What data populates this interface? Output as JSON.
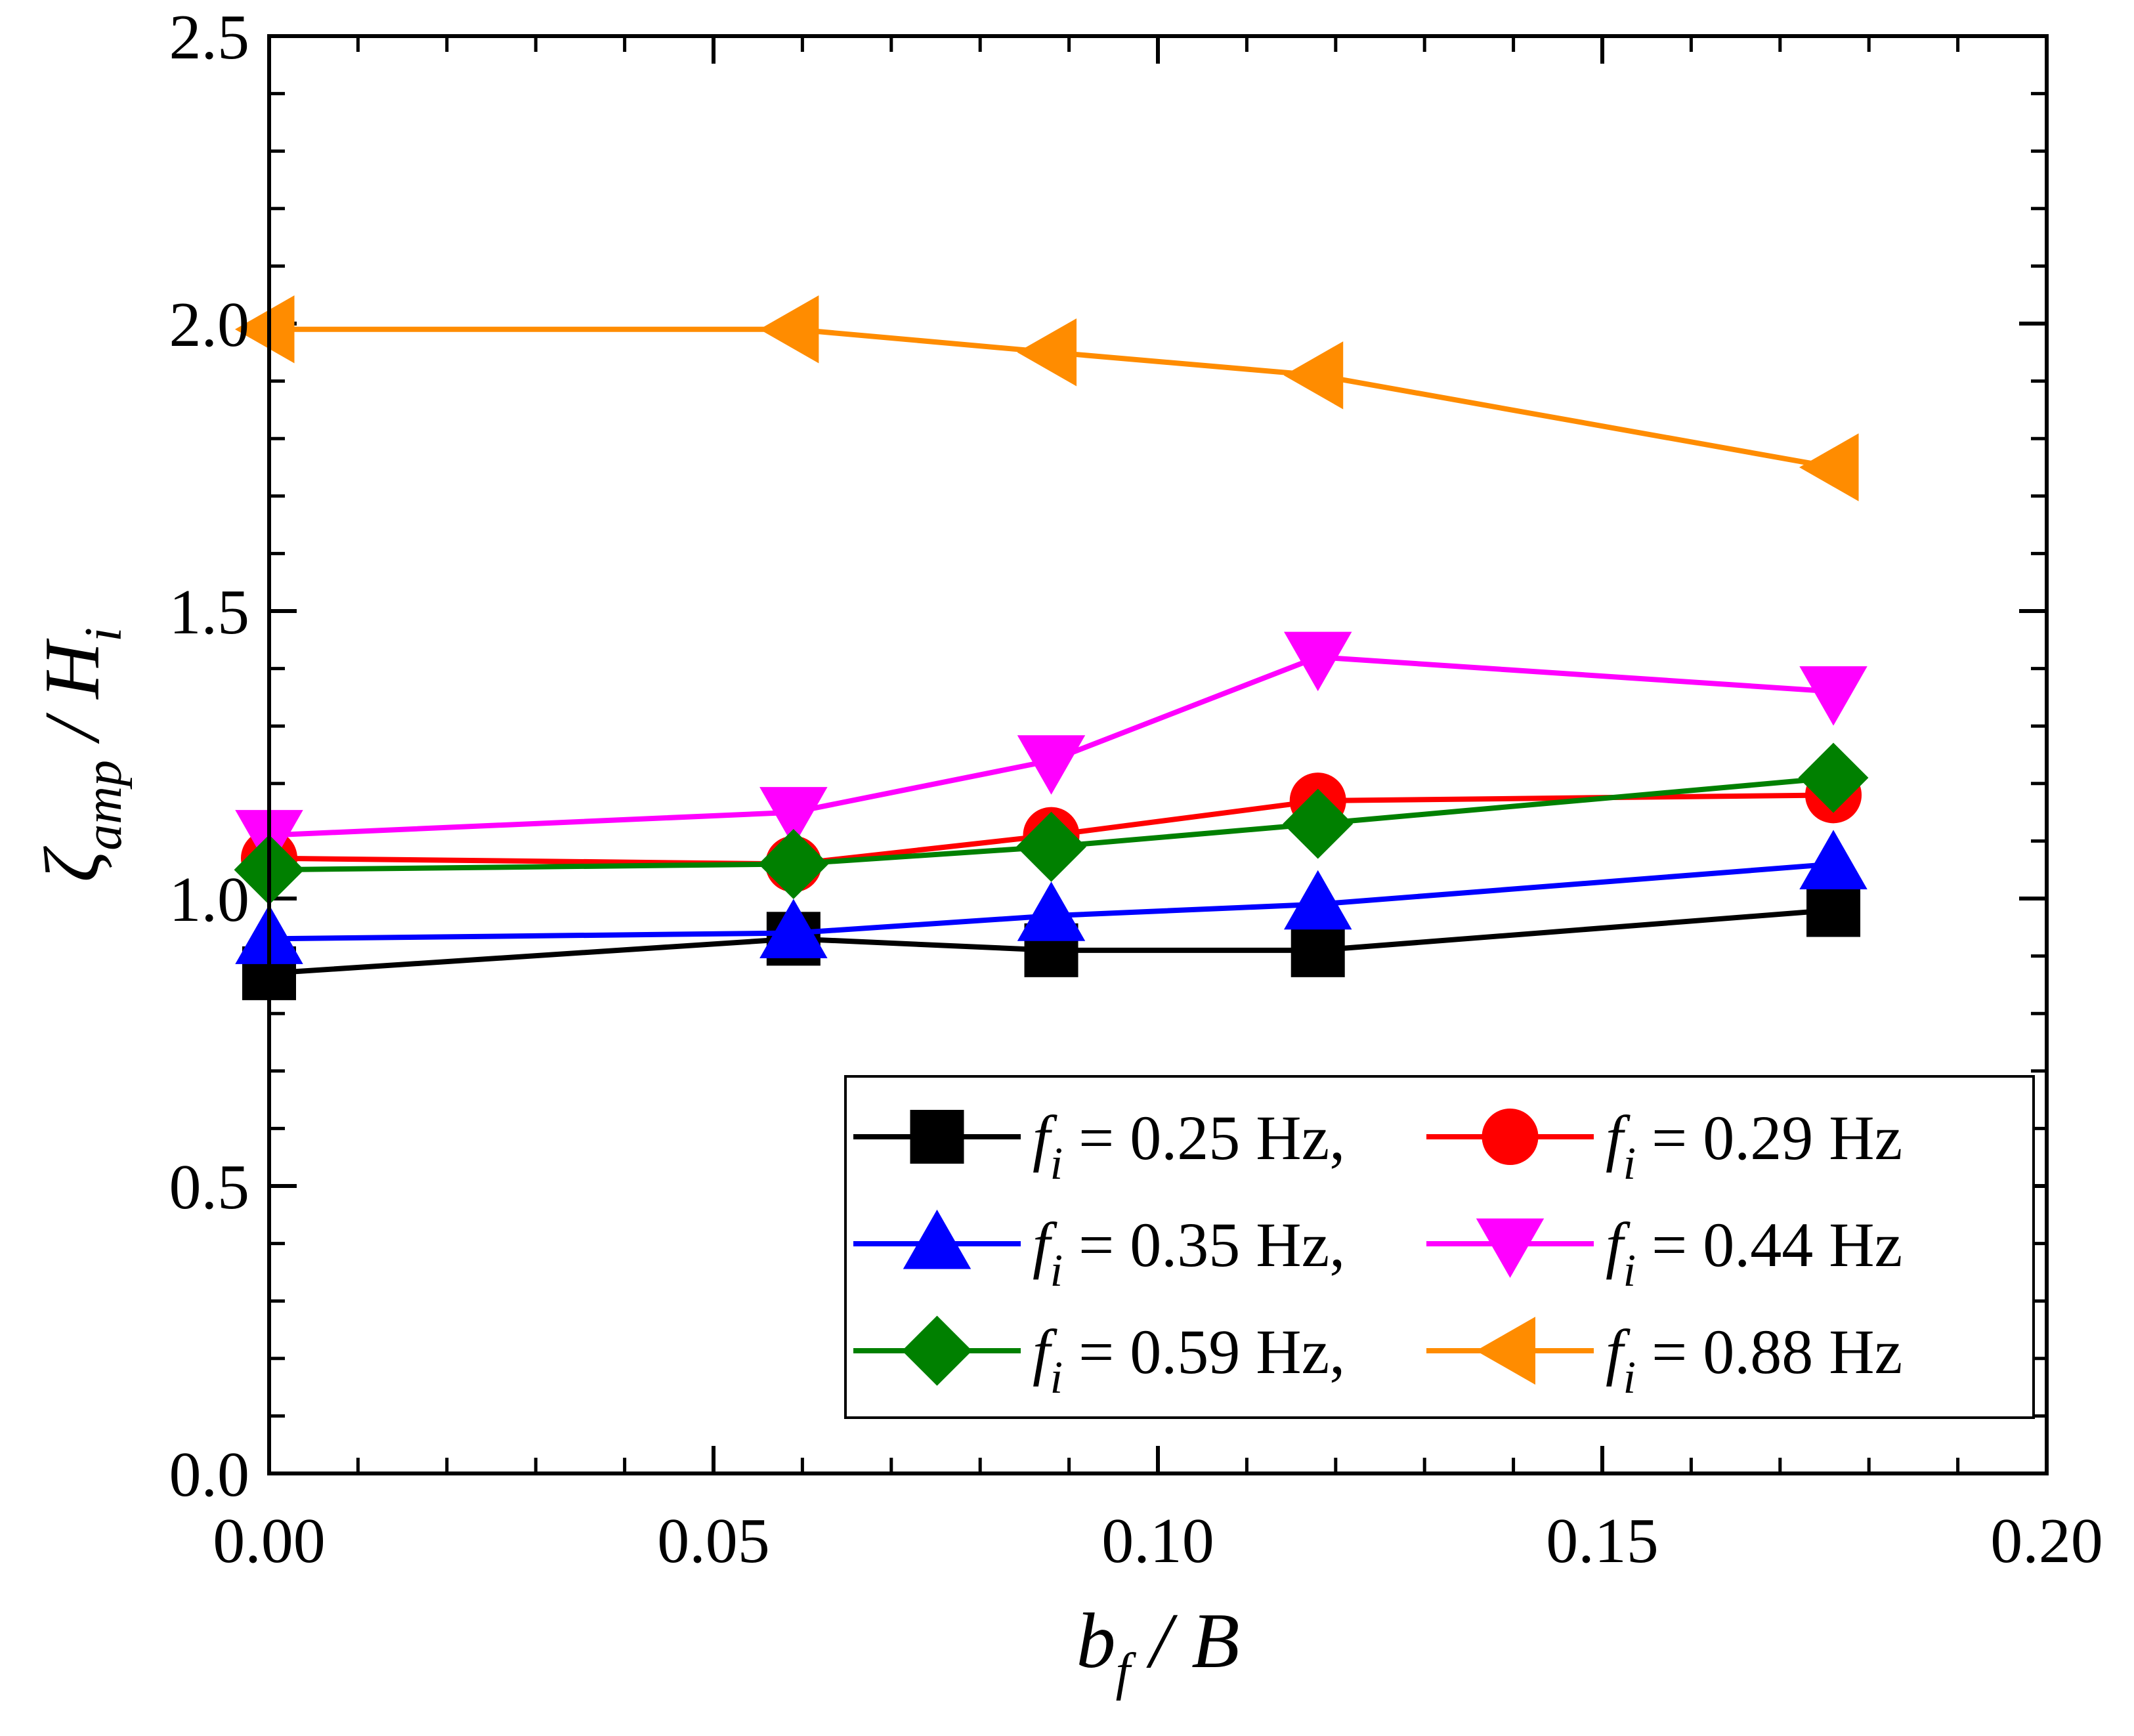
{
  "chart_data": {
    "type": "line",
    "xlabel": {
      "main": "b",
      "sub": "f",
      "rest": " / B"
    },
    "ylabel": {
      "main": "ζ",
      "sub": "amp",
      "rest": " / H",
      "sub2": "i"
    },
    "xlim": [
      0.0,
      0.2
    ],
    "ylim": [
      0.0,
      2.5
    ],
    "xticks": [
      "0.00",
      "0.05",
      "0.10",
      "0.15",
      "0.20"
    ],
    "yticks": [
      "0.0",
      "0.5",
      "1.0",
      "1.5",
      "2.0",
      "2.5"
    ],
    "grid": false,
    "legend_position": "bottom-right",
    "x": [
      0.0,
      0.059,
      0.088,
      0.118,
      0.176
    ],
    "series": [
      {
        "name": "f",
        "name_sub": "i",
        "name_rest": " = 0.25 Hz,",
        "color": "#000000",
        "marker": "square",
        "values": [
          0.87,
          0.93,
          0.91,
          0.91,
          0.98
        ]
      },
      {
        "name": "f",
        "name_sub": "i",
        "name_rest": " = 0.29 Hz",
        "color": "#ff0000",
        "marker": "circle",
        "values": [
          1.07,
          1.06,
          1.11,
          1.17,
          1.18
        ]
      },
      {
        "name": "f",
        "name_sub": "i",
        "name_rest": " = 0.35 Hz,",
        "color": "#0000ff",
        "marker": "triangle-up",
        "values": [
          0.93,
          0.94,
          0.97,
          0.99,
          1.06
        ]
      },
      {
        "name": "f",
        "name_sub": "i",
        "name_rest": " = 0.44 Hz",
        "color": "#ff00ff",
        "marker": "triangle-down",
        "values": [
          1.11,
          1.15,
          1.24,
          1.42,
          1.36
        ]
      },
      {
        "name": "f",
        "name_sub": "i",
        "name_rest": " = 0.59 Hz,",
        "color": "#008000",
        "marker": "diamond",
        "values": [
          1.05,
          1.06,
          1.09,
          1.13,
          1.21
        ]
      },
      {
        "name": "f",
        "name_sub": "i",
        "name_rest": " = 0.88 Hz",
        "color": "#ff8c00",
        "marker": "triangle-left",
        "values": [
          1.99,
          1.99,
          1.95,
          1.91,
          1.75
        ]
      }
    ]
  }
}
